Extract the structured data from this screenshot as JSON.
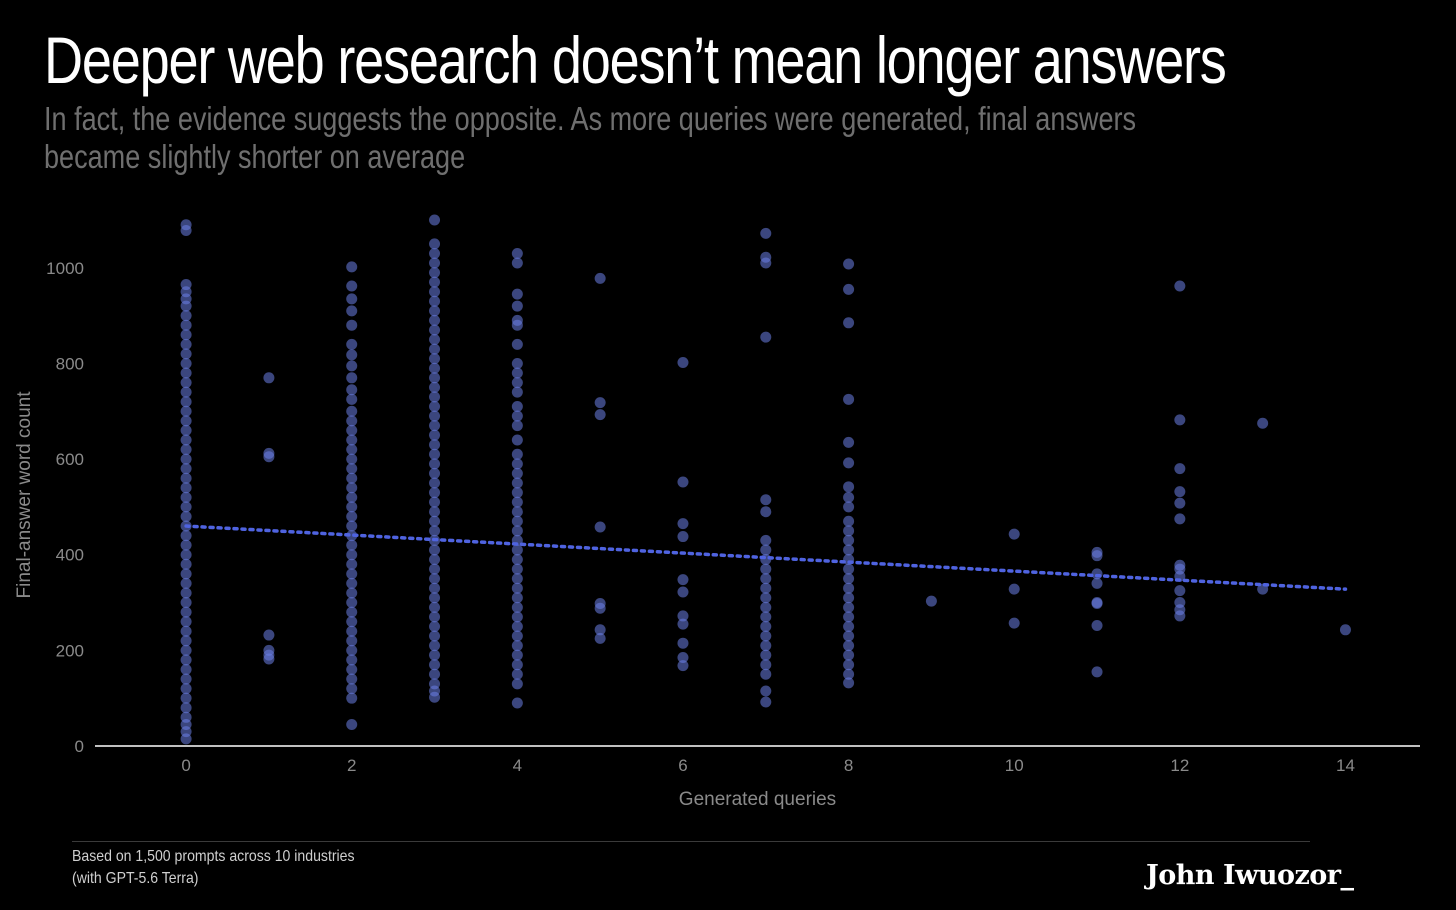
{
  "header": {
    "title": "Deeper web research doesn’t mean longer answers",
    "subtitle": "In fact, the evidence suggests the opposite. As more queries were generated, final answers became slightly shorter on average"
  },
  "footer": {
    "note_line1": "Based on 1,500 prompts across 10 industries",
    "note_line2": "(with GPT-5.6 Terra)",
    "logo": "John Iwuozor_"
  },
  "colors": {
    "background": "#000000",
    "point": "#6b7fe6",
    "trend": "#4f63e0",
    "axis_text": "#8a8a8a"
  },
  "chart_data": {
    "type": "scatter",
    "xlabel": "Generated queries",
    "ylabel": "Final-answer word count",
    "xlim": [
      -1.1,
      14.9
    ],
    "ylim": [
      0,
      1100
    ],
    "xticks": [
      0,
      2,
      4,
      6,
      8,
      10,
      12,
      14
    ],
    "yticks": [
      0,
      200,
      400,
      600,
      800,
      1000
    ],
    "grid": false,
    "trendline": {
      "style": "dotted",
      "x": [
        0,
        14
      ],
      "y": [
        460,
        328
      ]
    },
    "points": [
      {
        "x": 0,
        "y": 1090
      },
      {
        "x": 0,
        "y": 1078
      },
      {
        "x": 0,
        "y": 965
      },
      {
        "x": 0,
        "y": 950
      },
      {
        "x": 0,
        "y": 935
      },
      {
        "x": 0,
        "y": 920
      },
      {
        "x": 0,
        "y": 900
      },
      {
        "x": 0,
        "y": 880
      },
      {
        "x": 0,
        "y": 860
      },
      {
        "x": 0,
        "y": 840
      },
      {
        "x": 0,
        "y": 820
      },
      {
        "x": 0,
        "y": 800
      },
      {
        "x": 0,
        "y": 780
      },
      {
        "x": 0,
        "y": 760
      },
      {
        "x": 0,
        "y": 740
      },
      {
        "x": 0,
        "y": 720
      },
      {
        "x": 0,
        "y": 700
      },
      {
        "x": 0,
        "y": 680
      },
      {
        "x": 0,
        "y": 660
      },
      {
        "x": 0,
        "y": 640
      },
      {
        "x": 0,
        "y": 620
      },
      {
        "x": 0,
        "y": 600
      },
      {
        "x": 0,
        "y": 580
      },
      {
        "x": 0,
        "y": 560
      },
      {
        "x": 0,
        "y": 540
      },
      {
        "x": 0,
        "y": 520
      },
      {
        "x": 0,
        "y": 500
      },
      {
        "x": 0,
        "y": 480
      },
      {
        "x": 0,
        "y": 460
      },
      {
        "x": 0,
        "y": 440
      },
      {
        "x": 0,
        "y": 420
      },
      {
        "x": 0,
        "y": 400
      },
      {
        "x": 0,
        "y": 380
      },
      {
        "x": 0,
        "y": 360
      },
      {
        "x": 0,
        "y": 340
      },
      {
        "x": 0,
        "y": 320
      },
      {
        "x": 0,
        "y": 300
      },
      {
        "x": 0,
        "y": 280
      },
      {
        "x": 0,
        "y": 260
      },
      {
        "x": 0,
        "y": 240
      },
      {
        "x": 0,
        "y": 220
      },
      {
        "x": 0,
        "y": 200
      },
      {
        "x": 0,
        "y": 180
      },
      {
        "x": 0,
        "y": 160
      },
      {
        "x": 0,
        "y": 140
      },
      {
        "x": 0,
        "y": 120
      },
      {
        "x": 0,
        "y": 100
      },
      {
        "x": 0,
        "y": 80
      },
      {
        "x": 0,
        "y": 60
      },
      {
        "x": 0,
        "y": 45
      },
      {
        "x": 0,
        "y": 30
      },
      {
        "x": 0,
        "y": 15
      },
      {
        "x": 1,
        "y": 770
      },
      {
        "x": 1,
        "y": 612
      },
      {
        "x": 1,
        "y": 605
      },
      {
        "x": 1,
        "y": 232
      },
      {
        "x": 1,
        "y": 200
      },
      {
        "x": 1,
        "y": 190
      },
      {
        "x": 1,
        "y": 182
      },
      {
        "x": 2,
        "y": 1002
      },
      {
        "x": 2,
        "y": 962
      },
      {
        "x": 2,
        "y": 935
      },
      {
        "x": 2,
        "y": 910
      },
      {
        "x": 2,
        "y": 880
      },
      {
        "x": 2,
        "y": 840
      },
      {
        "x": 2,
        "y": 818
      },
      {
        "x": 2,
        "y": 795
      },
      {
        "x": 2,
        "y": 770
      },
      {
        "x": 2,
        "y": 745
      },
      {
        "x": 2,
        "y": 725
      },
      {
        "x": 2,
        "y": 700
      },
      {
        "x": 2,
        "y": 680
      },
      {
        "x": 2,
        "y": 660
      },
      {
        "x": 2,
        "y": 640
      },
      {
        "x": 2,
        "y": 620
      },
      {
        "x": 2,
        "y": 600
      },
      {
        "x": 2,
        "y": 580
      },
      {
        "x": 2,
        "y": 560
      },
      {
        "x": 2,
        "y": 540
      },
      {
        "x": 2,
        "y": 520
      },
      {
        "x": 2,
        "y": 500
      },
      {
        "x": 2,
        "y": 480
      },
      {
        "x": 2,
        "y": 460
      },
      {
        "x": 2,
        "y": 440
      },
      {
        "x": 2,
        "y": 420
      },
      {
        "x": 2,
        "y": 400
      },
      {
        "x": 2,
        "y": 380
      },
      {
        "x": 2,
        "y": 360
      },
      {
        "x": 2,
        "y": 340
      },
      {
        "x": 2,
        "y": 320
      },
      {
        "x": 2,
        "y": 300
      },
      {
        "x": 2,
        "y": 280
      },
      {
        "x": 2,
        "y": 260
      },
      {
        "x": 2,
        "y": 240
      },
      {
        "x": 2,
        "y": 220
      },
      {
        "x": 2,
        "y": 200
      },
      {
        "x": 2,
        "y": 180
      },
      {
        "x": 2,
        "y": 160
      },
      {
        "x": 2,
        "y": 140
      },
      {
        "x": 2,
        "y": 120
      },
      {
        "x": 2,
        "y": 100
      },
      {
        "x": 2,
        "y": 45
      },
      {
        "x": 3,
        "y": 1100
      },
      {
        "x": 3,
        "y": 1050
      },
      {
        "x": 3,
        "y": 1030
      },
      {
        "x": 3,
        "y": 1010
      },
      {
        "x": 3,
        "y": 990
      },
      {
        "x": 3,
        "y": 970
      },
      {
        "x": 3,
        "y": 950
      },
      {
        "x": 3,
        "y": 930
      },
      {
        "x": 3,
        "y": 910
      },
      {
        "x": 3,
        "y": 890
      },
      {
        "x": 3,
        "y": 870
      },
      {
        "x": 3,
        "y": 850
      },
      {
        "x": 3,
        "y": 830
      },
      {
        "x": 3,
        "y": 810
      },
      {
        "x": 3,
        "y": 790
      },
      {
        "x": 3,
        "y": 770
      },
      {
        "x": 3,
        "y": 750
      },
      {
        "x": 3,
        "y": 730
      },
      {
        "x": 3,
        "y": 710
      },
      {
        "x": 3,
        "y": 690
      },
      {
        "x": 3,
        "y": 670
      },
      {
        "x": 3,
        "y": 650
      },
      {
        "x": 3,
        "y": 630
      },
      {
        "x": 3,
        "y": 610
      },
      {
        "x": 3,
        "y": 590
      },
      {
        "x": 3,
        "y": 570
      },
      {
        "x": 3,
        "y": 550
      },
      {
        "x": 3,
        "y": 530
      },
      {
        "x": 3,
        "y": 510
      },
      {
        "x": 3,
        "y": 490
      },
      {
        "x": 3,
        "y": 470
      },
      {
        "x": 3,
        "y": 450
      },
      {
        "x": 3,
        "y": 430
      },
      {
        "x": 3,
        "y": 410
      },
      {
        "x": 3,
        "y": 390
      },
      {
        "x": 3,
        "y": 370
      },
      {
        "x": 3,
        "y": 350
      },
      {
        "x": 3,
        "y": 330
      },
      {
        "x": 3,
        "y": 310
      },
      {
        "x": 3,
        "y": 290
      },
      {
        "x": 3,
        "y": 270
      },
      {
        "x": 3,
        "y": 250
      },
      {
        "x": 3,
        "y": 230
      },
      {
        "x": 3,
        "y": 210
      },
      {
        "x": 3,
        "y": 190
      },
      {
        "x": 3,
        "y": 170
      },
      {
        "x": 3,
        "y": 150
      },
      {
        "x": 3,
        "y": 130
      },
      {
        "x": 3,
        "y": 115
      },
      {
        "x": 3,
        "y": 102
      },
      {
        "x": 4,
        "y": 1030
      },
      {
        "x": 4,
        "y": 1010
      },
      {
        "x": 4,
        "y": 945
      },
      {
        "x": 4,
        "y": 920
      },
      {
        "x": 4,
        "y": 890
      },
      {
        "x": 4,
        "y": 880
      },
      {
        "x": 4,
        "y": 840
      },
      {
        "x": 4,
        "y": 800
      },
      {
        "x": 4,
        "y": 780
      },
      {
        "x": 4,
        "y": 760
      },
      {
        "x": 4,
        "y": 740
      },
      {
        "x": 4,
        "y": 710
      },
      {
        "x": 4,
        "y": 690
      },
      {
        "x": 4,
        "y": 670
      },
      {
        "x": 4,
        "y": 640
      },
      {
        "x": 4,
        "y": 610
      },
      {
        "x": 4,
        "y": 590
      },
      {
        "x": 4,
        "y": 570
      },
      {
        "x": 4,
        "y": 550
      },
      {
        "x": 4,
        "y": 530
      },
      {
        "x": 4,
        "y": 510
      },
      {
        "x": 4,
        "y": 490
      },
      {
        "x": 4,
        "y": 470
      },
      {
        "x": 4,
        "y": 450
      },
      {
        "x": 4,
        "y": 430
      },
      {
        "x": 4,
        "y": 410
      },
      {
        "x": 4,
        "y": 390
      },
      {
        "x": 4,
        "y": 370
      },
      {
        "x": 4,
        "y": 350
      },
      {
        "x": 4,
        "y": 330
      },
      {
        "x": 4,
        "y": 310
      },
      {
        "x": 4,
        "y": 290
      },
      {
        "x": 4,
        "y": 270
      },
      {
        "x": 4,
        "y": 250
      },
      {
        "x": 4,
        "y": 230
      },
      {
        "x": 4,
        "y": 210
      },
      {
        "x": 4,
        "y": 190
      },
      {
        "x": 4,
        "y": 170
      },
      {
        "x": 4,
        "y": 150
      },
      {
        "x": 4,
        "y": 130
      },
      {
        "x": 4,
        "y": 90
      },
      {
        "x": 5,
        "y": 978
      },
      {
        "x": 5,
        "y": 718
      },
      {
        "x": 5,
        "y": 693
      },
      {
        "x": 5,
        "y": 458
      },
      {
        "x": 5,
        "y": 298
      },
      {
        "x": 5,
        "y": 288
      },
      {
        "x": 5,
        "y": 243
      },
      {
        "x": 5,
        "y": 225
      },
      {
        "x": 6,
        "y": 802
      },
      {
        "x": 6,
        "y": 552
      },
      {
        "x": 6,
        "y": 465
      },
      {
        "x": 6,
        "y": 438
      },
      {
        "x": 6,
        "y": 348
      },
      {
        "x": 6,
        "y": 322
      },
      {
        "x": 6,
        "y": 272
      },
      {
        "x": 6,
        "y": 255
      },
      {
        "x": 6,
        "y": 215
      },
      {
        "x": 6,
        "y": 185
      },
      {
        "x": 6,
        "y": 168
      },
      {
        "x": 7,
        "y": 1072
      },
      {
        "x": 7,
        "y": 1022
      },
      {
        "x": 7,
        "y": 1010
      },
      {
        "x": 7,
        "y": 855
      },
      {
        "x": 7,
        "y": 515
      },
      {
        "x": 7,
        "y": 490
      },
      {
        "x": 7,
        "y": 430
      },
      {
        "x": 7,
        "y": 410
      },
      {
        "x": 7,
        "y": 390
      },
      {
        "x": 7,
        "y": 370
      },
      {
        "x": 7,
        "y": 350
      },
      {
        "x": 7,
        "y": 330
      },
      {
        "x": 7,
        "y": 310
      },
      {
        "x": 7,
        "y": 290
      },
      {
        "x": 7,
        "y": 270
      },
      {
        "x": 7,
        "y": 250
      },
      {
        "x": 7,
        "y": 230
      },
      {
        "x": 7,
        "y": 210
      },
      {
        "x": 7,
        "y": 190
      },
      {
        "x": 7,
        "y": 170
      },
      {
        "x": 7,
        "y": 150
      },
      {
        "x": 7,
        "y": 115
      },
      {
        "x": 7,
        "y": 92
      },
      {
        "x": 8,
        "y": 1008
      },
      {
        "x": 8,
        "y": 955
      },
      {
        "x": 8,
        "y": 885
      },
      {
        "x": 8,
        "y": 725
      },
      {
        "x": 8,
        "y": 635
      },
      {
        "x": 8,
        "y": 592
      },
      {
        "x": 8,
        "y": 542
      },
      {
        "x": 8,
        "y": 520
      },
      {
        "x": 8,
        "y": 500
      },
      {
        "x": 8,
        "y": 470
      },
      {
        "x": 8,
        "y": 450
      },
      {
        "x": 8,
        "y": 430
      },
      {
        "x": 8,
        "y": 410
      },
      {
        "x": 8,
        "y": 390
      },
      {
        "x": 8,
        "y": 370
      },
      {
        "x": 8,
        "y": 350
      },
      {
        "x": 8,
        "y": 330
      },
      {
        "x": 8,
        "y": 310
      },
      {
        "x": 8,
        "y": 290
      },
      {
        "x": 8,
        "y": 270
      },
      {
        "x": 8,
        "y": 250
      },
      {
        "x": 8,
        "y": 230
      },
      {
        "x": 8,
        "y": 210
      },
      {
        "x": 8,
        "y": 190
      },
      {
        "x": 8,
        "y": 170
      },
      {
        "x": 8,
        "y": 150
      },
      {
        "x": 8,
        "y": 132
      },
      {
        "x": 9,
        "y": 303
      },
      {
        "x": 10,
        "y": 443
      },
      {
        "x": 10,
        "y": 328
      },
      {
        "x": 10,
        "y": 257
      },
      {
        "x": 11,
        "y": 405
      },
      {
        "x": 11,
        "y": 398
      },
      {
        "x": 11,
        "y": 360
      },
      {
        "x": 11,
        "y": 340
      },
      {
        "x": 11,
        "y": 300
      },
      {
        "x": 11,
        "y": 298
      },
      {
        "x": 11,
        "y": 252
      },
      {
        "x": 11,
        "y": 155
      },
      {
        "x": 12,
        "y": 962
      },
      {
        "x": 12,
        "y": 682
      },
      {
        "x": 12,
        "y": 580
      },
      {
        "x": 12,
        "y": 532
      },
      {
        "x": 12,
        "y": 508
      },
      {
        "x": 12,
        "y": 475
      },
      {
        "x": 12,
        "y": 378
      },
      {
        "x": 12,
        "y": 370
      },
      {
        "x": 12,
        "y": 355
      },
      {
        "x": 12,
        "y": 325
      },
      {
        "x": 12,
        "y": 300
      },
      {
        "x": 12,
        "y": 285
      },
      {
        "x": 12,
        "y": 272
      },
      {
        "x": 13,
        "y": 675
      },
      {
        "x": 13,
        "y": 328
      },
      {
        "x": 14,
        "y": 243
      }
    ]
  }
}
